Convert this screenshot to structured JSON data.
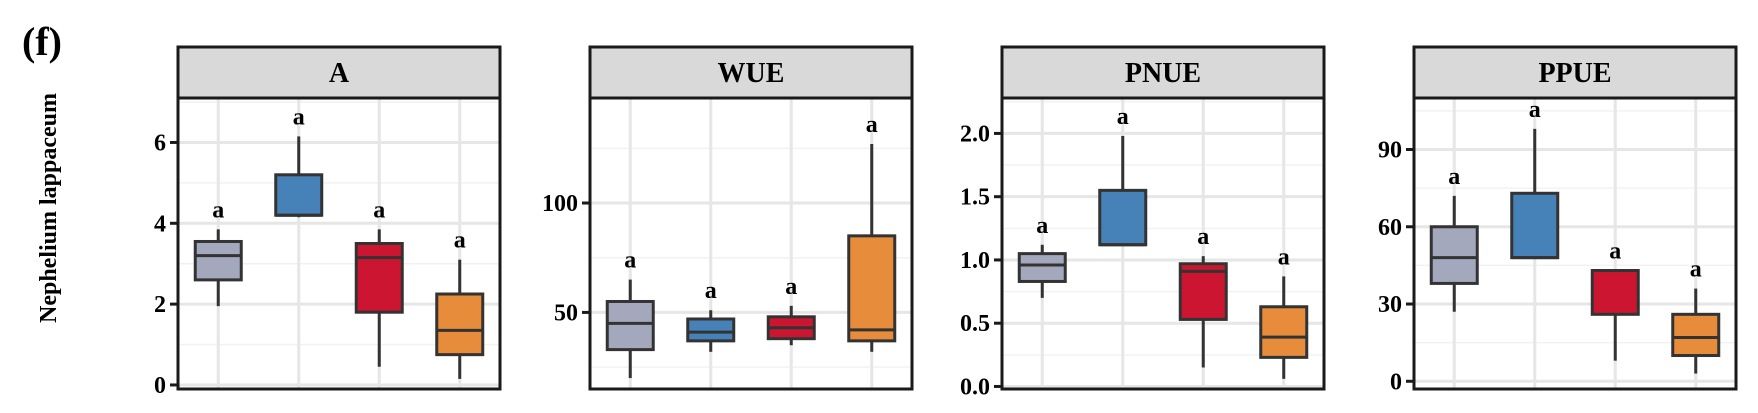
{
  "figure": {
    "panel_label": "(f)",
    "ylabel": "Nephelium lappaceum",
    "group_colors": [
      "#a4a8bd",
      "#4682b8",
      "#cc1530",
      "#e68c3a"
    ]
  },
  "chart_data": [
    {
      "type": "box",
      "title": "A",
      "ylim": [
        -0.1,
        7.1
      ],
      "yticks": [
        0,
        2,
        4,
        6
      ],
      "ytick_labels": [
        "0",
        "2",
        "4",
        "6"
      ],
      "grid": true,
      "boxes": [
        {
          "min": 1.95,
          "q1": 2.6,
          "median": 3.2,
          "q3": 3.55,
          "max": 3.85,
          "label": "a"
        },
        {
          "min": 4.15,
          "q1": 4.2,
          "median": 4.2,
          "q3": 5.2,
          "max": 6.15,
          "label": "a"
        },
        {
          "min": 0.45,
          "q1": 1.8,
          "median": 3.15,
          "q3": 3.5,
          "max": 3.85,
          "label": "a"
        },
        {
          "min": 0.15,
          "q1": 0.75,
          "median": 1.35,
          "q3": 2.25,
          "max": 3.1,
          "label": "a"
        }
      ]
    },
    {
      "type": "box",
      "title": "WUE",
      "ylim": [
        15,
        148
      ],
      "yticks": [
        50,
        100
      ],
      "ytick_labels": [
        "50",
        "100"
      ],
      "grid": true,
      "boxes": [
        {
          "min": 20,
          "q1": 33,
          "median": 45,
          "q3": 55,
          "max": 65,
          "label": "a"
        },
        {
          "min": 32,
          "q1": 37,
          "median": 41,
          "q3": 47,
          "max": 51,
          "label": "a"
        },
        {
          "min": 35,
          "q1": 38,
          "median": 43,
          "q3": 48,
          "max": 53,
          "label": "a"
        },
        {
          "min": 32,
          "q1": 37,
          "median": 42,
          "q3": 85,
          "max": 127,
          "label": "a"
        }
      ]
    },
    {
      "type": "box",
      "title": "PNUE",
      "ylim": [
        -0.02,
        2.28
      ],
      "yticks": [
        0.0,
        0.5,
        1.0,
        1.5,
        2.0
      ],
      "ytick_labels": [
        "0.0",
        "0.5",
        "1.0",
        "1.5",
        "2.0"
      ],
      "grid": true,
      "boxes": [
        {
          "min": 0.7,
          "q1": 0.83,
          "median": 0.96,
          "q3": 1.05,
          "max": 1.12,
          "label": "a"
        },
        {
          "min": 1.12,
          "q1": 1.12,
          "median": 1.12,
          "q3": 1.55,
          "max": 1.98,
          "label": "a"
        },
        {
          "min": 0.15,
          "q1": 0.53,
          "median": 0.91,
          "q3": 0.97,
          "max": 1.03,
          "label": "a"
        },
        {
          "min": 0.06,
          "q1": 0.23,
          "median": 0.39,
          "q3": 0.63,
          "max": 0.87,
          "label": "a"
        }
      ]
    },
    {
      "type": "box",
      "title": "PPUE",
      "ylim": [
        -3,
        110
      ],
      "yticks": [
        0,
        30,
        60,
        90
      ],
      "ytick_labels": [
        "0",
        "30",
        "60",
        "90"
      ],
      "grid": true,
      "boxes": [
        {
          "min": 27,
          "q1": 38,
          "median": 48,
          "q3": 60,
          "max": 72,
          "label": "a"
        },
        {
          "min": 48,
          "q1": 48,
          "median": 48,
          "q3": 73,
          "max": 98,
          "label": "a"
        },
        {
          "min": 8,
          "q1": 26,
          "median": 43,
          "q3": 43,
          "max": 43,
          "label": "a"
        },
        {
          "min": 3,
          "q1": 10,
          "median": 17,
          "q3": 26,
          "max": 36,
          "label": "a"
        }
      ]
    }
  ]
}
